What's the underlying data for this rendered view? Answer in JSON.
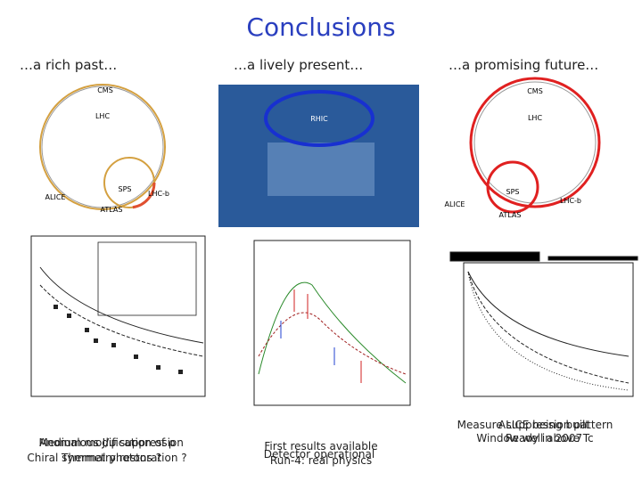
{
  "title": "Conclusions",
  "columns": [
    {
      "heading": "…a rich past…",
      "diagram_labels": [
        "LHC",
        "SPS",
        "CMS",
        "ALICE",
        "ATLAS",
        "LHC-b"
      ],
      "notes": [
        "Anomalous J/ψ suppression",
        "Medium modification of ρ",
        "Thermal photons ?",
        "Chiral symmetry restoration ?"
      ]
    },
    {
      "heading": "…a lively present…",
      "diagram_labels": [
        "RHIC"
      ],
      "notes": [
        "First results available",
        "Detector operational",
        "Run-4: real physics"
      ]
    },
    {
      "heading": "…a promising future…",
      "diagram_labels": [
        "LHC",
        "SPS",
        "CMS",
        "ALICE",
        "ATLAS",
        "LHC-b"
      ],
      "notes": [
        "ALICE being built",
        "Measure suppression pattern",
        "Ready in 2007",
        "Window well above Tc"
      ]
    }
  ]
}
